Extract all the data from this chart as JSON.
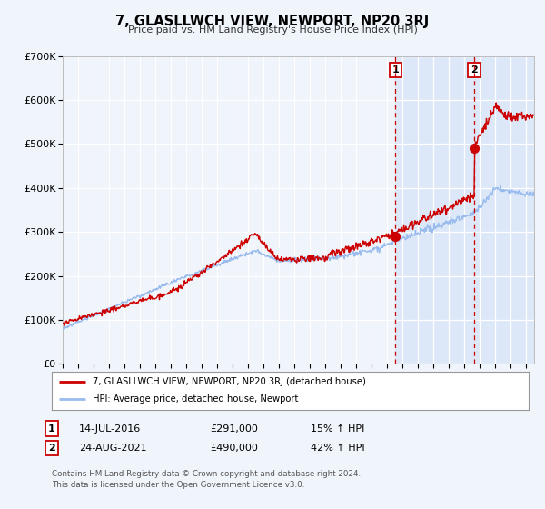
{
  "title": "7, GLASLLWCH VIEW, NEWPORT, NP20 3RJ",
  "subtitle": "Price paid vs. HM Land Registry's House Price Index (HPI)",
  "ylim": [
    0,
    700000
  ],
  "xlim_start": 1995.0,
  "xlim_end": 2025.5,
  "bg_color": "#f0f4fb",
  "plot_bg_color": "#f0f4fb",
  "red_color": "#cc0000",
  "blue_color": "#99bbee",
  "highlight_color": "#dce8f8",
  "vline_color": "#cc0000",
  "sale1_x": 2016.538,
  "sale1_y": 291000,
  "sale2_x": 2021.646,
  "sale2_y": 490000,
  "legend_label1": "7, GLASLLWCH VIEW, NEWPORT, NP20 3RJ (detached house)",
  "legend_label2": "HPI: Average price, detached house, Newport",
  "table_row1_num": "1",
  "table_row1_date": "14-JUL-2016",
  "table_row1_price": "£291,000",
  "table_row1_hpi": "15% ↑ HPI",
  "table_row2_num": "2",
  "table_row2_date": "24-AUG-2021",
  "table_row2_price": "£490,000",
  "table_row2_hpi": "42% ↑ HPI",
  "footer1": "Contains HM Land Registry data © Crown copyright and database right 2024.",
  "footer2": "This data is licensed under the Open Government Licence v3.0.",
  "ytick_labels": [
    "£0",
    "£100K",
    "£200K",
    "£300K",
    "£400K",
    "£500K",
    "£600K",
    "£700K"
  ],
  "ytick_values": [
    0,
    100000,
    200000,
    300000,
    400000,
    500000,
    600000,
    700000
  ]
}
